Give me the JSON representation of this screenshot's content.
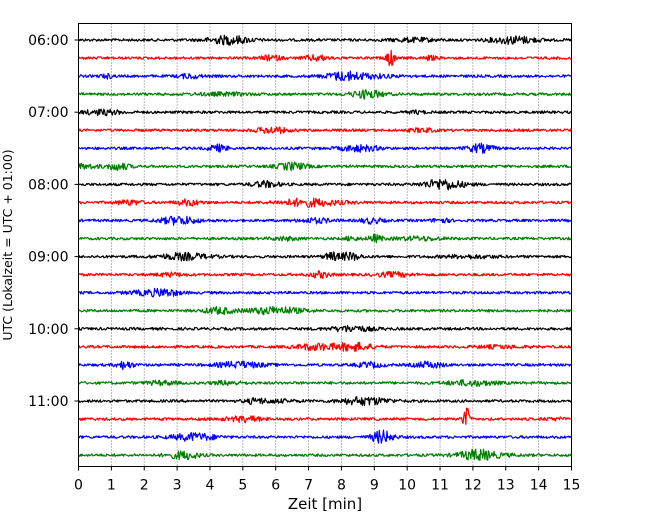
{
  "chart_data": {
    "type": "line",
    "xlabel": "Zeit  [min]",
    "ylabel": "UTC (Lokalzeit = UTC + 01:00)",
    "xlim": [
      0,
      15
    ],
    "x_ticks": [
      0,
      1,
      2,
      3,
      4,
      5,
      6,
      7,
      8,
      9,
      10,
      11,
      12,
      13,
      14,
      15
    ],
    "y_ticks": [
      "06:00",
      "07:00",
      "08:00",
      "09:00",
      "10:00",
      "11:00"
    ],
    "grid": "vertical dotted at each minute",
    "trace_colors": [
      "#000000",
      "#ff0000",
      "#0000ff",
      "#008000"
    ],
    "trace_rows": [
      "06:00",
      "06:15",
      "06:30",
      "06:45",
      "07:00",
      "07:15",
      "07:30",
      "07:45",
      "08:00",
      "08:15",
      "08:30",
      "08:45",
      "09:00",
      "09:15",
      "09:30",
      "09:45",
      "10:00",
      "10:15",
      "10:30",
      "10:45",
      "11:00",
      "11:15",
      "11:30",
      "11:45"
    ],
    "notable_events": [
      {
        "row": "06:15",
        "minute": 9.5,
        "description": "spike"
      },
      {
        "row": "11:15",
        "minute": 11.8,
        "description": "spike"
      }
    ]
  }
}
